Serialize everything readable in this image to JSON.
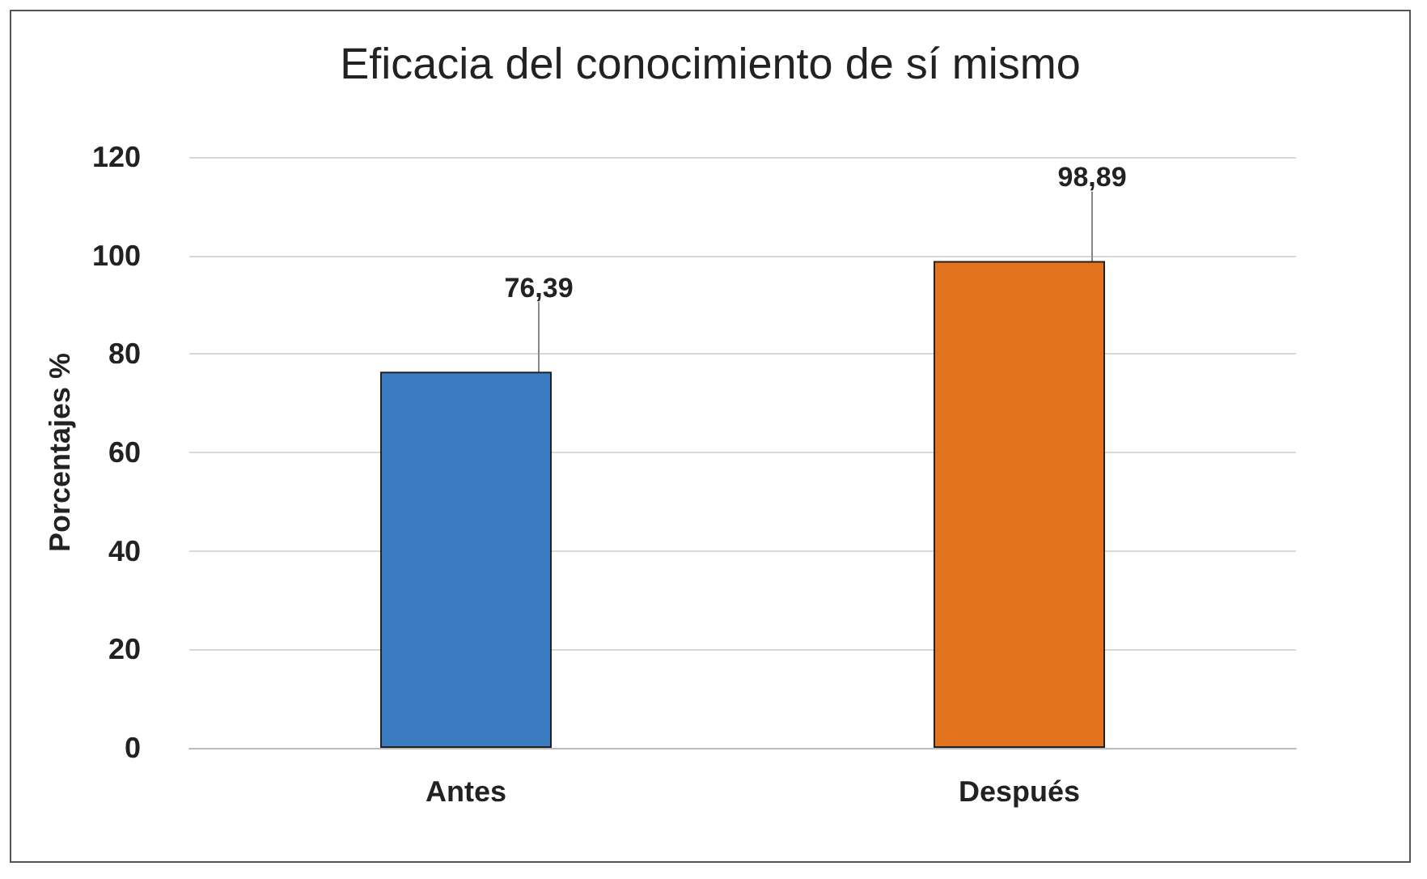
{
  "chart_data": {
    "type": "bar",
    "title": "Eficacia del conocimiento de sí mismo",
    "ylabel": "Porcentajes %",
    "categories": [
      "Antes",
      "Después"
    ],
    "values": [
      76.39,
      98.89
    ],
    "colors": [
      "#3b7cc0",
      "#e3721f"
    ],
    "value_labels": [
      "76,39",
      "98,89"
    ],
    "ylim": [
      0,
      120
    ],
    "yticks": [
      0,
      20,
      40,
      60,
      80,
      100,
      120
    ],
    "grid": "y"
  }
}
